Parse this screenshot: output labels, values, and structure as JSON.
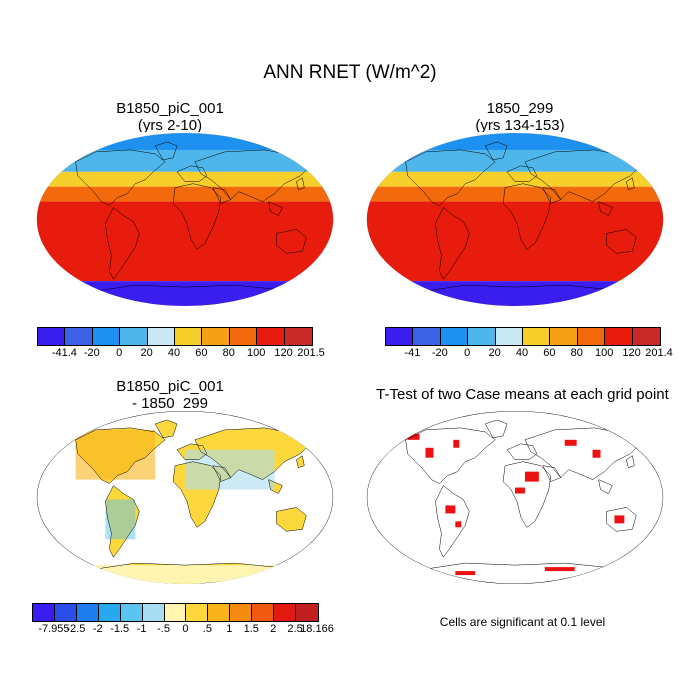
{
  "figure_title": "ANN RNET (W/m^2)",
  "panels": {
    "top_left": {
      "title_line1": "B1850_piC_001",
      "title_line2": "(yrs 2-10)"
    },
    "top_right": {
      "title_line1": "1850_299",
      "title_line2": "(yrs 134-153)"
    },
    "bottom_left": {
      "title_line1": "B1850_piC_001",
      "title_line2": "- 1850_299"
    },
    "bottom_right": {
      "title": "T-Test of two Case means at each grid point",
      "note": "Cells are significant at 0.1 level"
    }
  },
  "colorbars": {
    "top_left": {
      "labels": [
        "-41.4",
        "-20",
        "0",
        "20",
        "40",
        "60",
        "80",
        "100",
        "120",
        "201.5"
      ],
      "colors": [
        "#3a1ef0",
        "#3b62e4",
        "#1e90f0",
        "#4fb6ec",
        "#c8e8f4",
        "#f7cf2a",
        "#f5a016",
        "#f26a0c",
        "#e81c0c",
        "#c82a2a"
      ]
    },
    "top_right": {
      "labels": [
        "-41",
        "-20",
        "0",
        "20",
        "40",
        "60",
        "80",
        "100",
        "120",
        "201.4"
      ],
      "colors": [
        "#3a1ef0",
        "#3b62e4",
        "#1e90f0",
        "#4fb6ec",
        "#c8e8f4",
        "#f7cf2a",
        "#f5a016",
        "#f26a0c",
        "#e81c0c",
        "#c82a2a"
      ]
    },
    "bottom_left": {
      "labels": [
        "-7.955",
        "-2.5",
        "-2",
        "-1.5",
        "-1",
        "-.5",
        "0",
        ".5",
        "1",
        "1.5",
        "2",
        "2.5",
        "18.166"
      ],
      "colors": [
        "#3a1ef0",
        "#2a4ee8",
        "#1e7ef0",
        "#28a8f0",
        "#5cc4f0",
        "#a8dcf0",
        "#fff4b0",
        "#fcd83c",
        "#f9b41c",
        "#f58a10",
        "#f05a10",
        "#e01a10",
        "#c02020"
      ]
    }
  }
}
